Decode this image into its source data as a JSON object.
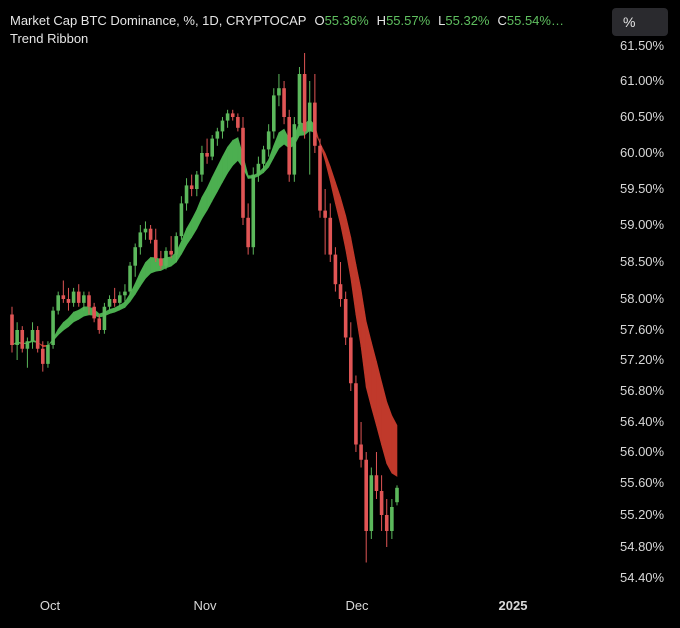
{
  "legend": {
    "line1_prefix": "Market Cap BTC Dominance, %, 1D, CRYPTOCAP",
    "o_label": "O",
    "o_value": "55.36%",
    "h_label": "H",
    "h_value": "55.57%",
    "l_label": "L",
    "l_value": "55.32%",
    "c_label": "C",
    "c_value": "55.54%…",
    "line2": "Trend Ribbon"
  },
  "scale_button": "%",
  "colors": {
    "up": "#5cb85c",
    "down": "#e05555",
    "ribbon_up": "#4caf50",
    "ribbon_down": "#c0392b"
  },
  "chart_data": {
    "type": "candlestick",
    "title": "Market Cap BTC Dominance, %, 1D, CRYPTOCAP",
    "y_ticks": [
      "61.50%",
      "61.00%",
      "60.50%",
      "60.00%",
      "59.50%",
      "59.00%",
      "58.50%",
      "58.00%",
      "57.60%",
      "57.20%",
      "56.80%",
      "56.40%",
      "56.00%",
      "55.60%",
      "55.20%",
      "54.80%",
      "54.40%"
    ],
    "x_ticks": [
      {
        "label": "Oct",
        "bold": false
      },
      {
        "label": "Nov",
        "bold": false
      },
      {
        "label": "Dec",
        "bold": false
      },
      {
        "label": "2025",
        "bold": true
      }
    ],
    "candles": [
      [
        57.8,
        57.9,
        57.3,
        57.4
      ],
      [
        57.4,
        57.7,
        57.2,
        57.6
      ],
      [
        57.6,
        57.65,
        57.3,
        57.35
      ],
      [
        57.35,
        57.5,
        57.1,
        57.45
      ],
      [
        57.45,
        57.7,
        57.35,
        57.6
      ],
      [
        57.6,
        57.65,
        57.3,
        57.35
      ],
      [
        57.35,
        57.45,
        57.05,
        57.15
      ],
      [
        57.15,
        57.45,
        57.1,
        57.4
      ],
      [
        57.4,
        57.9,
        57.35,
        57.85
      ],
      [
        57.85,
        58.1,
        57.8,
        58.05
      ],
      [
        58.05,
        58.25,
        57.95,
        58.0
      ],
      [
        58.0,
        58.15,
        57.85,
        57.95
      ],
      [
        57.95,
        58.15,
        57.9,
        58.1
      ],
      [
        58.1,
        58.2,
        57.9,
        57.95
      ],
      [
        57.95,
        58.1,
        57.85,
        58.05
      ],
      [
        58.05,
        58.1,
        57.8,
        57.9
      ],
      [
        57.9,
        57.95,
        57.7,
        57.75
      ],
      [
        57.75,
        57.8,
        57.55,
        57.6
      ],
      [
        57.6,
        57.95,
        57.55,
        57.9
      ],
      [
        57.9,
        58.05,
        57.85,
        58.0
      ],
      [
        58.0,
        58.15,
        57.9,
        57.95
      ],
      [
        57.95,
        58.1,
        57.9,
        58.05
      ],
      [
        58.05,
        58.2,
        57.95,
        58.1
      ],
      [
        58.1,
        58.5,
        58.05,
        58.45
      ],
      [
        58.45,
        58.75,
        58.3,
        58.7
      ],
      [
        58.7,
        59.0,
        58.6,
        58.9
      ],
      [
        58.9,
        59.05,
        58.8,
        58.95
      ],
      [
        58.95,
        59.0,
        58.75,
        58.8
      ],
      [
        58.8,
        58.95,
        58.5,
        58.55
      ],
      [
        58.55,
        58.65,
        58.4,
        58.45
      ],
      [
        58.45,
        58.7,
        58.4,
        58.65
      ],
      [
        58.65,
        58.85,
        58.55,
        58.6
      ],
      [
        58.6,
        58.9,
        58.5,
        58.85
      ],
      [
        58.85,
        59.4,
        58.8,
        59.3
      ],
      [
        59.3,
        59.65,
        59.2,
        59.55
      ],
      [
        59.55,
        59.7,
        59.4,
        59.5
      ],
      [
        59.5,
        59.75,
        59.4,
        59.7
      ],
      [
        59.7,
        60.1,
        59.6,
        60.0
      ],
      [
        60.0,
        60.2,
        59.85,
        59.95
      ],
      [
        59.95,
        60.25,
        59.9,
        60.2
      ],
      [
        60.2,
        60.35,
        60.1,
        60.3
      ],
      [
        60.3,
        60.5,
        60.2,
        60.45
      ],
      [
        60.45,
        60.6,
        60.35,
        60.55
      ],
      [
        60.55,
        60.6,
        60.45,
        60.5
      ],
      [
        60.5,
        60.55,
        60.3,
        60.35
      ],
      [
        60.35,
        60.5,
        59.0,
        59.1
      ],
      [
        59.1,
        59.3,
        58.6,
        58.7
      ],
      [
        58.7,
        59.8,
        58.6,
        59.7
      ],
      [
        59.7,
        59.95,
        59.6,
        59.85
      ],
      [
        59.85,
        60.1,
        59.75,
        60.05
      ],
      [
        60.05,
        60.4,
        59.95,
        60.3
      ],
      [
        60.3,
        60.9,
        60.2,
        60.8
      ],
      [
        60.8,
        61.1,
        60.65,
        60.9
      ],
      [
        60.9,
        61.0,
        60.4,
        60.5
      ],
      [
        60.5,
        60.6,
        59.6,
        59.7
      ],
      [
        59.7,
        60.5,
        59.6,
        60.4
      ],
      [
        60.4,
        61.2,
        60.35,
        61.1
      ],
      [
        61.1,
        61.4,
        60.2,
        60.3
      ],
      [
        60.3,
        61.0,
        59.7,
        60.7
      ],
      [
        60.7,
        61.1,
        60.0,
        60.1
      ],
      [
        60.1,
        60.2,
        59.1,
        59.2
      ],
      [
        59.2,
        59.5,
        58.6,
        59.1
      ],
      [
        59.1,
        59.3,
        58.5,
        58.6
      ],
      [
        58.6,
        58.7,
        58.1,
        58.2
      ],
      [
        58.2,
        58.5,
        57.9,
        58.0
      ],
      [
        58.0,
        58.1,
        57.4,
        57.5
      ],
      [
        57.5,
        57.7,
        56.8,
        56.9
      ],
      [
        56.9,
        57.0,
        56.0,
        56.1
      ],
      [
        56.1,
        56.4,
        55.8,
        55.9
      ],
      [
        55.9,
        56.0,
        54.6,
        55.0
      ],
      [
        55.0,
        55.8,
        54.9,
        55.7
      ],
      [
        55.7,
        56.0,
        55.4,
        55.5
      ],
      [
        55.5,
        55.7,
        55.0,
        55.2
      ],
      [
        55.2,
        55.4,
        54.8,
        55.0
      ],
      [
        55.0,
        55.4,
        54.9,
        55.3
      ],
      [
        55.36,
        55.57,
        55.32,
        55.54
      ]
    ]
  }
}
